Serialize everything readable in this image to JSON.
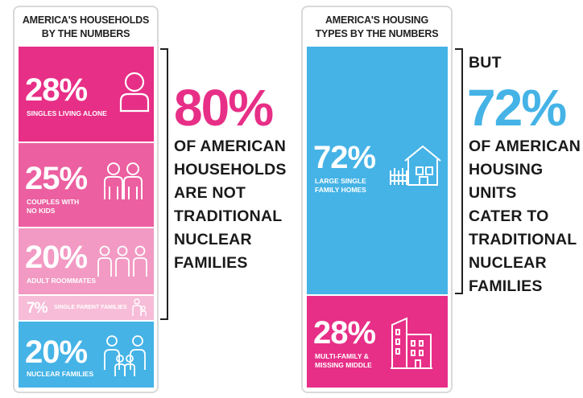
{
  "colors": {
    "pink_dark": "#e72f87",
    "pink_mid": "#ec5fa0",
    "pink_light": "#f29ac3",
    "pink_pale": "#f7bcd7",
    "blue": "#45b3e6",
    "magenta": "#e72f87"
  },
  "households": {
    "title": "AMERICA'S HOUSEHOLDS BY THE NUMBERS",
    "segments": [
      {
        "pct": "28%",
        "label": "SINGLES LIVING ALONE",
        "icon": "single-person-icon"
      },
      {
        "pct": "25%",
        "label": "COUPLES WITH NO KIDS",
        "icon": "couple-icon"
      },
      {
        "pct": "20%",
        "label": "ADULT ROOMMATES",
        "icon": "roommates-icon"
      },
      {
        "pct": "7%",
        "label": "SINGLE PARENT FAMILIES",
        "icon": "single-parent-icon"
      },
      {
        "pct": "20%",
        "label": "NUCLEAR FAMILIES",
        "icon": "nuclear-family-icon"
      }
    ]
  },
  "households_callout": {
    "pct": "80%",
    "lines": [
      "OF AMERICAN",
      "HOUSEHOLDS",
      "ARE NOT",
      "TRADITIONAL",
      "NUCLEAR",
      "FAMILIES"
    ]
  },
  "housing": {
    "title": "AMERICA'S HOUSING TYPES BY THE NUMBERS",
    "segments": [
      {
        "pct": "72%",
        "label": "LARGE SINGLE FAMILY HOMES",
        "icon": "house-icon"
      },
      {
        "pct": "28%",
        "label": "MULTI-FAMILY & MISSING MIDDLE",
        "icon": "apartment-building-icon"
      }
    ]
  },
  "housing_callout": {
    "prefix": "BUT",
    "pct": "72%",
    "lines": [
      "OF AMERICAN",
      "HOUSING UNITS",
      "CATER TO",
      "TRADITIONAL",
      "NUCLEAR",
      "FAMILIES"
    ]
  },
  "chart_data": [
    {
      "type": "bar",
      "title": "AMERICA'S HOUSEHOLDS BY THE NUMBERS",
      "categories": [
        "SINGLES LIVING ALONE",
        "COUPLES WITH NO KIDS",
        "ADULT ROOMMATES",
        "SINGLE PARENT FAMILIES",
        "NUCLEAR FAMILIES"
      ],
      "values": [
        28,
        25,
        20,
        7,
        20
      ],
      "unit": "%"
    },
    {
      "type": "bar",
      "title": "AMERICA'S HOUSING TYPES BY THE NUMBERS",
      "categories": [
        "LARGE SINGLE FAMILY HOMES",
        "MULTI-FAMILY & MISSING MIDDLE"
      ],
      "values": [
        72,
        28
      ],
      "unit": "%"
    }
  ]
}
